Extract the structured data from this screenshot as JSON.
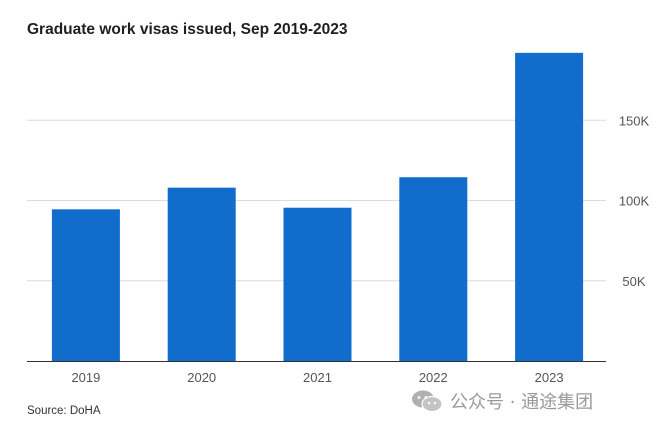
{
  "chart_data": {
    "type": "bar",
    "title": "Graduate work visas issued, Sep 2019-2023",
    "categories": [
      "2019",
      "2020",
      "2021",
      "2022",
      "2023"
    ],
    "values": [
      94500,
      108000,
      95500,
      114500,
      192000
    ],
    "ylim": [
      0,
      200000
    ],
    "yticks": [
      {
        "value": 50000,
        "label": "50K"
      },
      {
        "value": 100000,
        "label": "100K"
      },
      {
        "value": 150000,
        "label": "150K"
      }
    ],
    "xlabel": "",
    "ylabel": "",
    "grid": true,
    "y_axis_position": "right",
    "bar_color": "#126ccc"
  },
  "source": "Source: DoHA",
  "watermark": {
    "text": "公众号 · 通途集团",
    "icon": "wechat-logo-icon"
  }
}
